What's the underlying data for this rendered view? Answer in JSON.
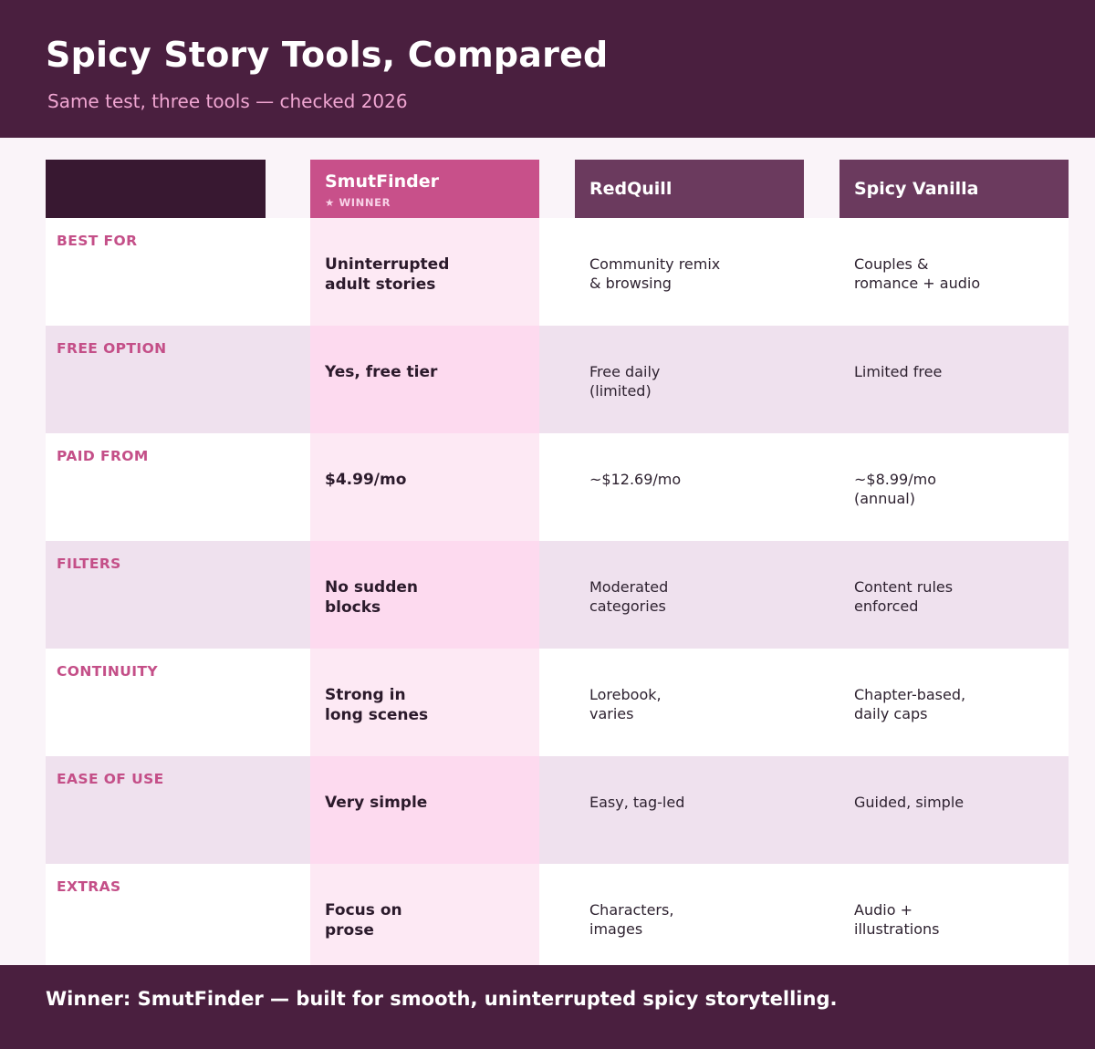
{
  "header": {
    "title": "Spicy Story Tools, Compared",
    "subtitle": "Same test, three tools — checked 2026"
  },
  "columns": [
    {
      "name": "SmutFinder",
      "badge": "★ WINNER"
    },
    {
      "name": "RedQuill"
    },
    {
      "name": "Spicy Vanilla"
    }
  ],
  "rows": [
    {
      "label": "BEST FOR",
      "values": [
        "Uninterrupted\nadult stories",
        "Community remix\n& browsing",
        "Couples &\nromance + audio"
      ]
    },
    {
      "label": "FREE OPTION",
      "values": [
        "Yes, free tier",
        "Free daily\n(limited)",
        "Limited free"
      ]
    },
    {
      "label": "PAID FROM",
      "values": [
        "$4.99/mo",
        "~$12.69/mo",
        "~$8.99/mo\n(annual)"
      ]
    },
    {
      "label": "FILTERS",
      "values": [
        "No sudden\nblocks",
        "Moderated\ncategories",
        "Content rules\nenforced"
      ]
    },
    {
      "label": "CONTINUITY",
      "values": [
        "Strong in\nlong scenes",
        "Lorebook,\nvaries",
        "Chapter-based,\ndaily caps"
      ]
    },
    {
      "label": "EASE OF USE",
      "values": [
        "Very simple",
        "Easy, tag-led",
        "Guided, simple"
      ]
    },
    {
      "label": "EXTRAS",
      "values": [
        "Focus on\nprose",
        "Characters,\nimages",
        "Audio +\nillustrations"
      ]
    }
  ],
  "footer": {
    "text": "Winner: SmutFinder — built for smooth, uninterrupted spicy storytelling."
  },
  "colors": {
    "header_bg": "#4a1f3f",
    "winner_accent": "#c8508a",
    "other_header": "#6b3a5e",
    "label_text": "#c44f88"
  }
}
